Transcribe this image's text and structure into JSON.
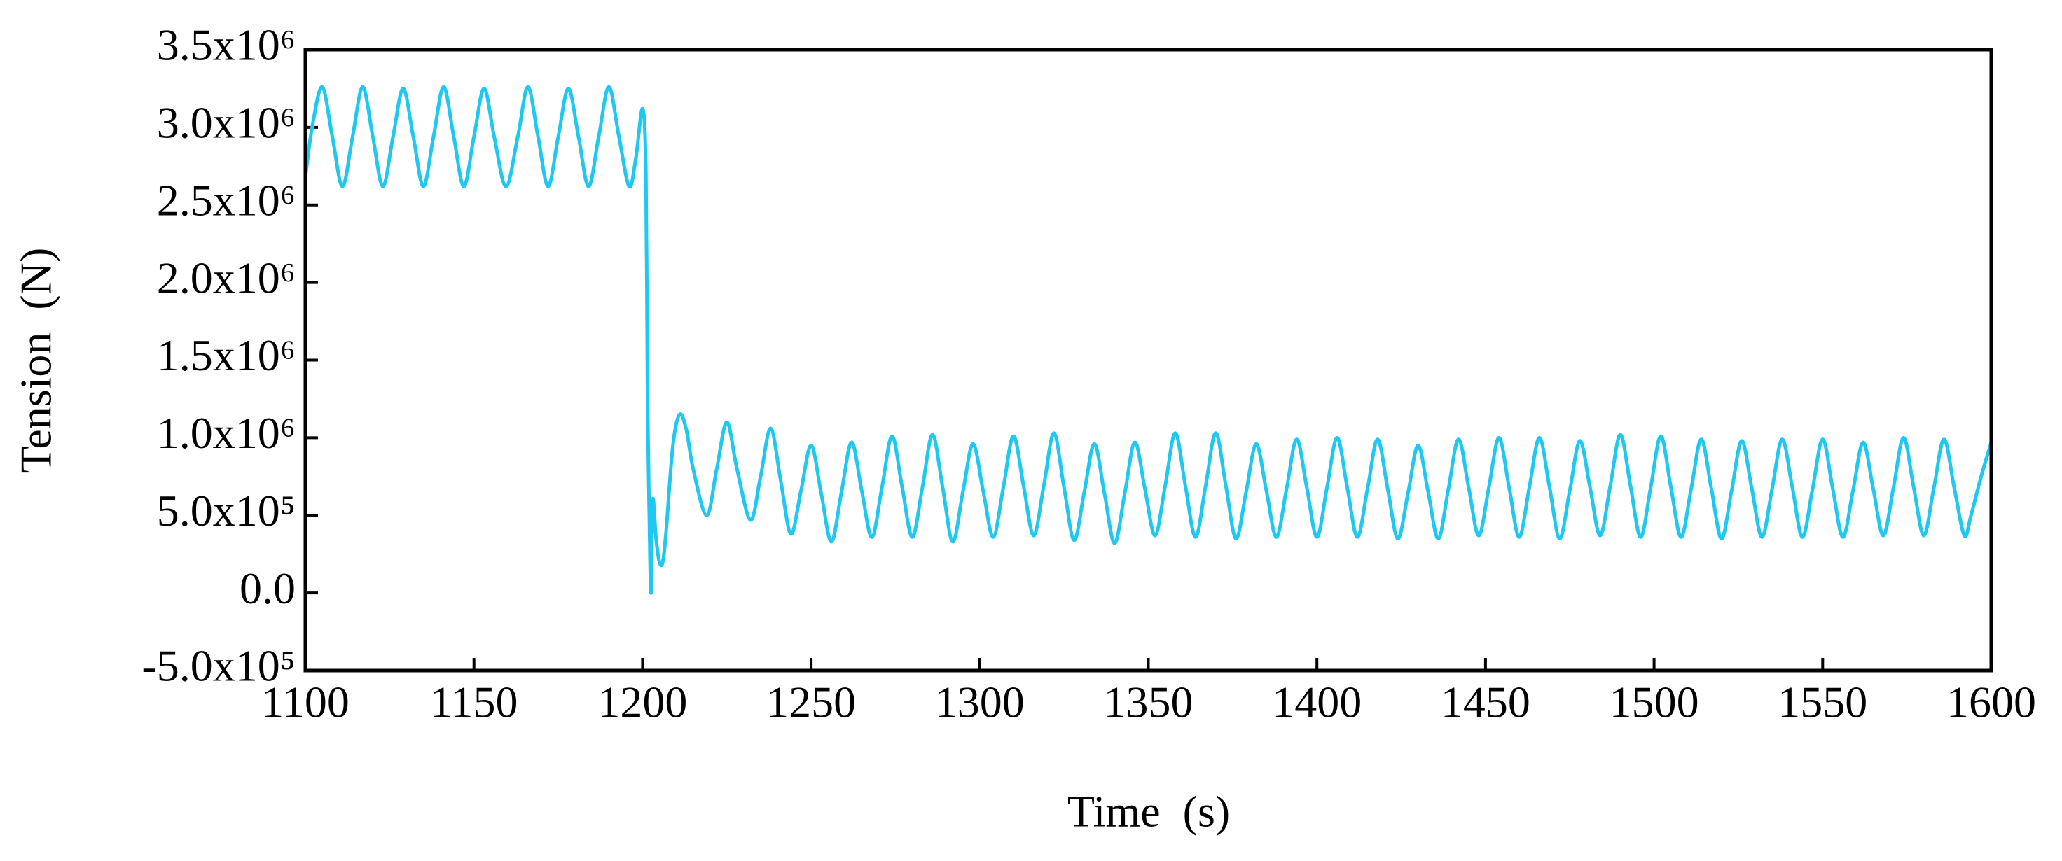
{
  "chart_data": {
    "type": "line",
    "xlabel": "Time  (s)",
    "ylabel": "Tension  (N)",
    "color": "#1ec8f0",
    "xlim": [
      1100,
      1600
    ],
    "xticks": [
      1100,
      1150,
      1200,
      1250,
      1300,
      1350,
      1400,
      1450,
      1500,
      1550,
      1600
    ],
    "ylim": [
      -500000,
      3500000
    ],
    "yticks": [
      {
        "value": -500000,
        "label": "-5.0x10⁵"
      },
      {
        "value": 0,
        "label": "0.0"
      },
      {
        "value": 500000,
        "label": "5.0x10⁵"
      },
      {
        "value": 1000000,
        "label": "1.0x10⁶"
      },
      {
        "value": 1500000,
        "label": "1.5x10⁶"
      },
      {
        "value": 2000000,
        "label": "2.0x10⁶"
      },
      {
        "value": 2500000,
        "label": "2.5x10⁶"
      },
      {
        "value": 3000000,
        "label": "3.0x10⁶"
      },
      {
        "value": 3500000,
        "label": "3.5x10⁶"
      }
    ],
    "x": [
      1100,
      1102,
      1105,
      1108,
      1111,
      1114,
      1117,
      1120,
      1123,
      1126,
      1129,
      1132,
      1135,
      1138,
      1141,
      1144,
      1147,
      1150,
      1153,
      1156,
      1159.5,
      1163,
      1166,
      1169,
      1172,
      1175,
      1178,
      1181,
      1184,
      1187,
      1190,
      1193,
      1196,
      1198,
      1200,
      1201,
      1201.5,
      1202,
      1202.5,
      1203,
      1204,
      1205,
      1206,
      1207,
      1209,
      1211,
      1213,
      1215,
      1219,
      1222,
      1225,
      1228,
      1232,
      1235,
      1238,
      1241,
      1244,
      1247,
      1250,
      1253,
      1256,
      1259,
      1262,
      1265,
      1268,
      1271,
      1274,
      1277,
      1280,
      1283,
      1286,
      1289,
      1292,
      1295,
      1298,
      1301,
      1304,
      1307,
      1310,
      1313,
      1316,
      1319,
      1322,
      1325,
      1328,
      1331,
      1334,
      1337,
      1340,
      1343,
      1346,
      1349,
      1352,
      1355,
      1358,
      1361,
      1364,
      1367,
      1370,
      1373,
      1376,
      1379,
      1382,
      1385,
      1388,
      1391,
      1394,
      1397,
      1400,
      1403,
      1406,
      1409,
      1412,
      1415,
      1418,
      1421,
      1424,
      1427,
      1430,
      1433,
      1436,
      1439,
      1442,
      1445,
      1448,
      1451,
      1454,
      1457,
      1460,
      1463,
      1466,
      1469,
      1472,
      1475,
      1478,
      1481,
      1484,
      1487,
      1490,
      1493,
      1496,
      1499,
      1502,
      1505,
      1508,
      1511,
      1514,
      1517,
      1520,
      1523,
      1526,
      1529,
      1532,
      1535,
      1538,
      1541,
      1544,
      1547,
      1550,
      1553,
      1556,
      1559,
      1562,
      1565,
      1568,
      1571,
      1574,
      1577,
      1580,
      1583,
      1586,
      1589,
      1592,
      1594,
      1597,
      1600
    ],
    "values": [
      2680000,
      3000000,
      3260000,
      2940000,
      2620000,
      2940000,
      3260000,
      2940000,
      2620000,
      2940000,
      3250000,
      2940000,
      2620000,
      2940000,
      3260000,
      2940000,
      2620000,
      2940000,
      3250000,
      2940000,
      2620000,
      2940000,
      3260000,
      2940000,
      2620000,
      2940000,
      3250000,
      2940000,
      2620000,
      2940000,
      3260000,
      2940000,
      2620000,
      2800000,
      3120000,
      2700000,
      1200000,
      500000,
      0,
      600000,
      350000,
      200000,
      200000,
      400000,
      950000,
      1150000,
      1050000,
      800000,
      500000,
      800000,
      1100000,
      800000,
      470000,
      750000,
      1060000,
      720000,
      380000,
      660000,
      950000,
      640000,
      330000,
      650000,
      970000,
      660000,
      360000,
      680000,
      1010000,
      680000,
      360000,
      680000,
      1020000,
      680000,
      330000,
      650000,
      960000,
      660000,
      360000,
      680000,
      1010000,
      690000,
      370000,
      690000,
      1030000,
      680000,
      340000,
      650000,
      960000,
      640000,
      320000,
      640000,
      970000,
      670000,
      370000,
      690000,
      1030000,
      690000,
      360000,
      690000,
      1030000,
      690000,
      350000,
      650000,
      960000,
      660000,
      360000,
      670000,
      990000,
      680000,
      360000,
      680000,
      1000000,
      680000,
      360000,
      670000,
      990000,
      670000,
      350000,
      640000,
      950000,
      650000,
      350000,
      670000,
      990000,
      680000,
      370000,
      680000,
      1000000,
      680000,
      360000,
      680000,
      1000000,
      680000,
      350000,
      660000,
      980000,
      680000,
      370000,
      690000,
      1020000,
      690000,
      360000,
      680000,
      1010000,
      680000,
      360000,
      670000,
      990000,
      670000,
      350000,
      660000,
      980000,
      670000,
      360000,
      670000,
      990000,
      680000,
      360000,
      670000,
      990000,
      670000,
      360000,
      660000,
      970000,
      670000,
      370000,
      680000,
      1000000,
      680000,
      370000,
      680000,
      990000,
      680000,
      370000,
      500000,
      750000,
      970000
    ]
  }
}
